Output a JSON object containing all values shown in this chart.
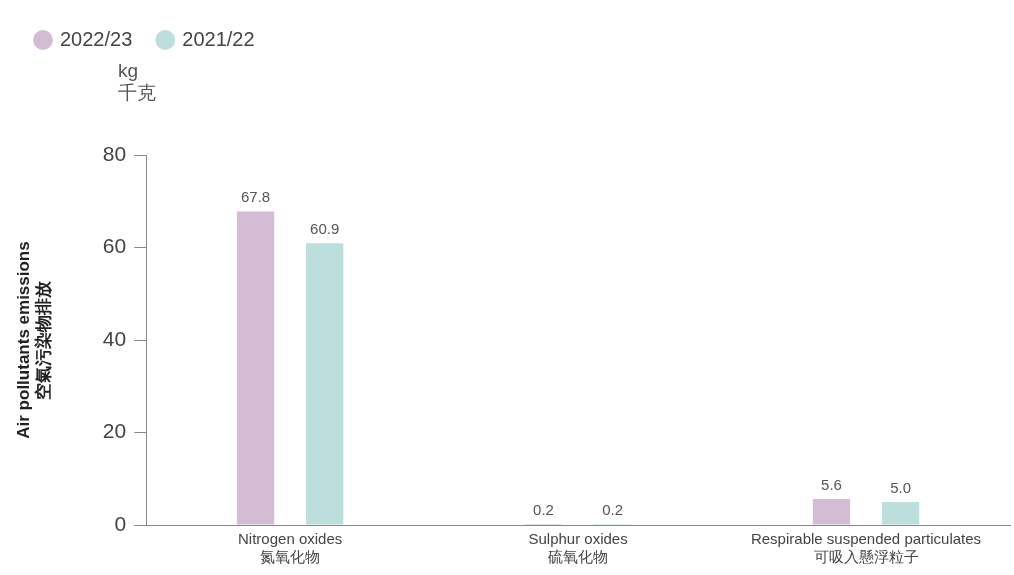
{
  "chart_data": {
    "type": "bar",
    "categories": [
      "Nitrogen oxides\n氮氧化物",
      "Sulphur oxides\n硫氧化物",
      "Respirable suspended particulates\n可吸入懸浮粒子"
    ],
    "series": [
      {
        "name": "2022/23",
        "color": "#d4bcd4",
        "values": [
          67.8,
          0.2,
          5.6
        ],
        "value_labels": [
          "67.8",
          "0.2",
          "5.6"
        ]
      },
      {
        "name": "2021/22",
        "color": "#bcdedc",
        "values": [
          60.9,
          0.2,
          5.0
        ],
        "value_labels": [
          "60.9",
          "0.2",
          "5.0"
        ]
      }
    ],
    "ylabel": "Air pollutants emissions\n空氣污染物排放",
    "annotations": [
      "kg\n千克"
    ],
    "ylim": [
      0,
      80
    ],
    "yticks": [
      0,
      20,
      40,
      60,
      80
    ],
    "grid": false,
    "legend": "top left"
  }
}
